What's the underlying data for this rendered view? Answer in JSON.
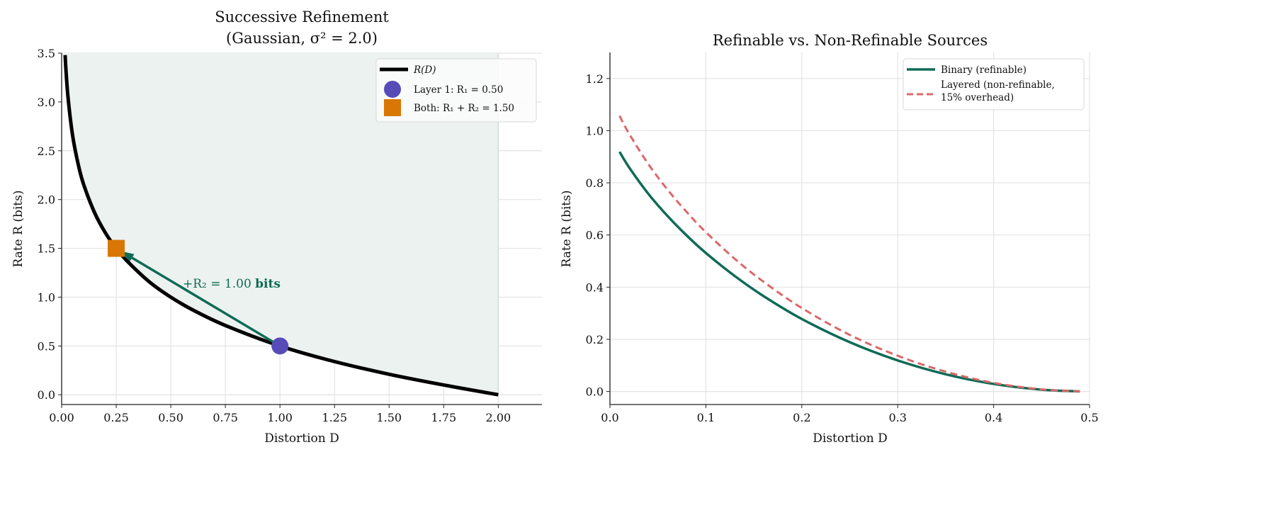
{
  "chart_data": [
    {
      "type": "line",
      "title": [
        "Successive Refinement",
        "(Gaussian, σ² = 2.0)"
      ],
      "xlabel": "Distortion D",
      "ylabel": "Rate R (bits)",
      "xlim": [
        0,
        2.2
      ],
      "ylim": [
        -0.1,
        3.5
      ],
      "xticks": [
        "0.00",
        "0.25",
        "0.50",
        "0.75",
        "1.00",
        "1.25",
        "1.50",
        "1.75",
        "2.00"
      ],
      "yticks": [
        "0.0",
        "0.5",
        "1.0",
        "1.5",
        "2.0",
        "2.5",
        "3.0",
        "3.5"
      ],
      "grid": true,
      "legend_position": "top-right",
      "series": [
        {
          "name": "R(D)",
          "color": "#000000",
          "x": [
            0.016,
            0.02,
            0.03,
            0.05,
            0.075,
            0.1,
            0.15,
            0.2,
            0.25,
            0.3,
            0.4,
            0.5,
            0.6,
            0.75,
            1.0,
            1.25,
            1.5,
            1.75,
            2.0
          ],
          "y": [
            3.48,
            3.32,
            3.03,
            2.66,
            2.37,
            2.16,
            1.87,
            1.66,
            1.5,
            1.37,
            1.16,
            1.0,
            0.87,
            0.71,
            0.5,
            0.34,
            0.21,
            0.1,
            0.0
          ]
        }
      ],
      "fill_color": "#ecf2ef",
      "points": [
        {
          "name": "Layer 1: R₁ = 0.50",
          "x": 1.0,
          "y": 0.5,
          "marker": "circle",
          "color": "#574bb8"
        },
        {
          "name": "Both: R₁ + R₂ = 1.50",
          "x": 0.25,
          "y": 1.5,
          "marker": "square",
          "color": "#d97706"
        }
      ],
      "annotation": {
        "text": "+R₂ = 1.00",
        "bold": "bits",
        "from": [
          1.0,
          0.5
        ],
        "to": [
          0.25,
          1.5
        ],
        "color": "#0f6b55"
      }
    },
    {
      "type": "line",
      "title": "Refinable vs. Non-Refinable Sources",
      "xlabel": "Distortion D",
      "ylabel": "Rate R (bits)",
      "xlim": [
        0,
        0.5
      ],
      "ylim": [
        -0.05,
        1.3
      ],
      "xticks": [
        "0.0",
        "0.1",
        "0.2",
        "0.3",
        "0.4",
        "0.5"
      ],
      "yticks": [
        "0.0",
        "0.2",
        "0.4",
        "0.6",
        "0.8",
        "1.0",
        "1.2"
      ],
      "grid": true,
      "legend_position": "top-right",
      "series": [
        {
          "name": "Binary (refinable)",
          "color": "#0f6b55",
          "style": "solid",
          "x": [
            0.01,
            0.02,
            0.04,
            0.06,
            0.08,
            0.1,
            0.13,
            0.16,
            0.2,
            0.25,
            0.3,
            0.35,
            0.4,
            0.45,
            0.49
          ],
          "y": [
            0.919,
            0.859,
            0.758,
            0.673,
            0.598,
            0.531,
            0.443,
            0.366,
            0.278,
            0.189,
            0.119,
            0.066,
            0.029,
            0.007,
            0.0003
          ]
        },
        {
          "name": [
            "Layered (non-refinable,",
            "15% overhead)"
          ],
          "color": "#d9686a",
          "style": "dashed",
          "x": [
            0.01,
            0.02,
            0.04,
            0.06,
            0.08,
            0.1,
            0.13,
            0.16,
            0.2,
            0.25,
            0.3,
            0.35,
            0.4,
            0.45,
            0.49
          ],
          "y": [
            1.057,
            0.988,
            0.872,
            0.774,
            0.688,
            0.611,
            0.509,
            0.421,
            0.32,
            0.217,
            0.137,
            0.076,
            0.033,
            0.008,
            0.0003
          ]
        }
      ]
    }
  ]
}
